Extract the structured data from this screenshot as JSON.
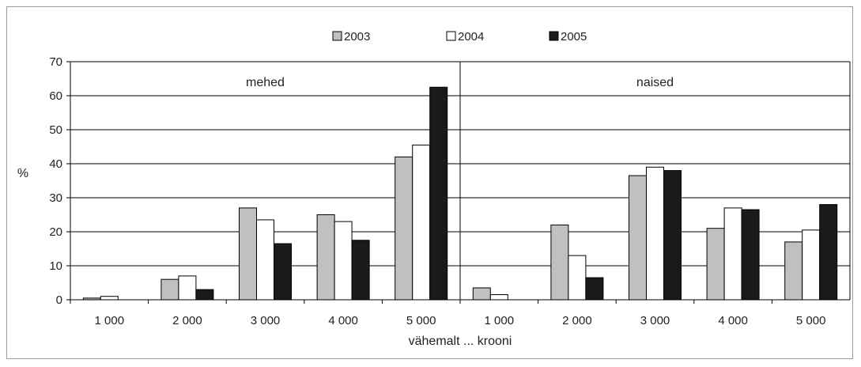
{
  "chart_data": {
    "type": "bar",
    "ylabel": "%",
    "xlabel": "vähemalt ... krooni",
    "ylim": [
      0,
      70
    ],
    "yticks": [
      0,
      10,
      20,
      30,
      40,
      50,
      60,
      70
    ],
    "grid": true,
    "legend_position": "top-center",
    "colors": {
      "2003": "#c0c0c0",
      "2004": "#ffffff",
      "2005": "#1a1a1a"
    },
    "legend": [
      "2003",
      "2004",
      "2005"
    ],
    "panels": [
      {
        "label": "mehed",
        "categories": [
          "1 000",
          "2 000",
          "3 000",
          "4 000",
          "5 000"
        ],
        "series": [
          {
            "name": "2003",
            "values": [
              0.5,
              6,
              27,
              25,
              42
            ]
          },
          {
            "name": "2004",
            "values": [
              1,
              7,
              23.5,
              23,
              45.5
            ]
          },
          {
            "name": "2005",
            "values": [
              0,
              3,
              16.5,
              17.5,
              62.5
            ]
          }
        ]
      },
      {
        "label": "naised",
        "categories": [
          "1 000",
          "2 000",
          "3 000",
          "4 000",
          "5 000"
        ],
        "series": [
          {
            "name": "2003",
            "values": [
              3.5,
              22,
              36.5,
              21,
              17
            ]
          },
          {
            "name": "2004",
            "values": [
              1.5,
              13,
              39,
              27,
              20.5
            ]
          },
          {
            "name": "2005",
            "values": [
              0,
              6.5,
              38,
              26.5,
              28
            ]
          }
        ]
      }
    ]
  }
}
